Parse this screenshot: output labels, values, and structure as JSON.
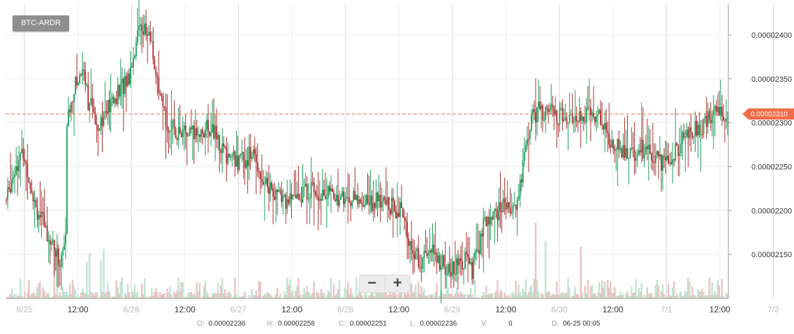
{
  "pair_label": "BTC-ARDR",
  "zoom": {
    "out_label": "−",
    "in_label": "+"
  },
  "ohlc": {
    "o_label": "O:",
    "o_value": "0.00002236",
    "h_label": "H:",
    "h_value": "0.00002258",
    "c_label": "C:",
    "c_value": "0.00002251",
    "l_label": "L:",
    "l_value": "0.00002236",
    "v_label": "V:",
    "v_value": "0",
    "d_label": "D:",
    "d_value": "06-25 00:05"
  },
  "colors": {
    "up": "#1e9e5e",
    "down": "#a8302f",
    "up_volume": "#cfe9db",
    "down_volume": "#efd2d2",
    "current_price": "#f26b4a",
    "grid": "#ececec"
  },
  "chart_data": {
    "type": "candlestick",
    "title": "",
    "ylim": [
      2.1e-05,
      2.435e-05
    ],
    "y_ticks": [
      "0.00002400",
      "0.00002350",
      "0.00002300",
      "0.00002250",
      "0.00002200",
      "0.00002150"
    ],
    "x_ticks": [
      {
        "label": "6/25",
        "day": true
      },
      {
        "label": "12:00",
        "day": false
      },
      {
        "label": "6/26",
        "day": true
      },
      {
        "label": "12:00",
        "day": false
      },
      {
        "label": "6/27",
        "day": true
      },
      {
        "label": "12:00",
        "day": false
      },
      {
        "label": "6/28",
        "day": true
      },
      {
        "label": "12:00",
        "day": false
      },
      {
        "label": "6/29",
        "day": true
      },
      {
        "label": "12:00",
        "day": false
      },
      {
        "label": "6/30",
        "day": true
      },
      {
        "label": "12:00",
        "day": false
      },
      {
        "label": "7/1",
        "day": true
      },
      {
        "label": "12:00",
        "day": false
      },
      {
        "label": "7/2",
        "day": true
      }
    ],
    "current_price": 2.31e-05,
    "current_price_label": "0.00002310",
    "close_path_anchors": [
      [
        0,
        2.212e-05
      ],
      [
        6,
        2.25e-05
      ],
      [
        12,
        2.265e-05
      ],
      [
        22,
        2.2e-05
      ],
      [
        32,
        2.165e-05
      ],
      [
        38,
        2.14e-05
      ],
      [
        42,
        2.168e-05
      ],
      [
        43,
        2.3e-05
      ],
      [
        48,
        2.34e-05
      ],
      [
        55,
        2.365e-05
      ],
      [
        58,
        2.325e-05
      ],
      [
        65,
        2.3e-05
      ],
      [
        78,
        2.33e-05
      ],
      [
        87,
        2.355e-05
      ],
      [
        95,
        2.415e-05
      ],
      [
        103,
        2.39e-05
      ],
      [
        108,
        2.33e-05
      ],
      [
        115,
        2.295e-05
      ],
      [
        130,
        2.285e-05
      ],
      [
        145,
        2.295e-05
      ],
      [
        155,
        2.265e-05
      ],
      [
        165,
        2.255e-05
      ],
      [
        175,
        2.265e-05
      ],
      [
        182,
        2.235e-05
      ],
      [
        190,
        2.22e-05
      ],
      [
        200,
        2.21e-05
      ],
      [
        215,
        2.225e-05
      ],
      [
        235,
        2.215e-05
      ],
      [
        248,
        2.212e-05
      ],
      [
        262,
        2.21e-05
      ],
      [
        270,
        2.208e-05
      ],
      [
        280,
        2.198e-05
      ],
      [
        286,
        2.16e-05
      ],
      [
        293,
        2.14e-05
      ],
      [
        300,
        2.155e-05
      ],
      [
        308,
        2.14e-05
      ],
      [
        315,
        2.13e-05
      ],
      [
        325,
        2.145e-05
      ],
      [
        330,
        2.13e-05
      ],
      [
        338,
        2.18e-05
      ],
      [
        345,
        2.195e-05
      ],
      [
        352,
        2.205e-05
      ],
      [
        362,
        2.208e-05
      ],
      [
        368,
        2.27e-05
      ],
      [
        372,
        2.305e-05
      ],
      [
        378,
        2.315e-05
      ],
      [
        395,
        2.305e-05
      ],
      [
        405,
        2.31e-05
      ],
      [
        420,
        2.31e-05
      ],
      [
        428,
        2.28e-05
      ],
      [
        440,
        2.265e-05
      ],
      [
        450,
        2.27e-05
      ],
      [
        465,
        2.255e-05
      ],
      [
        472,
        2.265e-05
      ],
      [
        482,
        2.285e-05
      ],
      [
        495,
        2.3e-05
      ],
      [
        505,
        2.315e-05
      ],
      [
        512,
        2.31e-05
      ]
    ],
    "volume_spikes": [
      [
        34,
        0.78
      ],
      [
        36,
        0.75
      ],
      [
        57,
        0.48
      ],
      [
        59,
        0.6
      ],
      [
        67,
        0.5
      ],
      [
        69,
        0.65
      ],
      [
        375,
        1.0
      ],
      [
        382,
        0.75
      ],
      [
        407,
        0.68
      ]
    ]
  }
}
